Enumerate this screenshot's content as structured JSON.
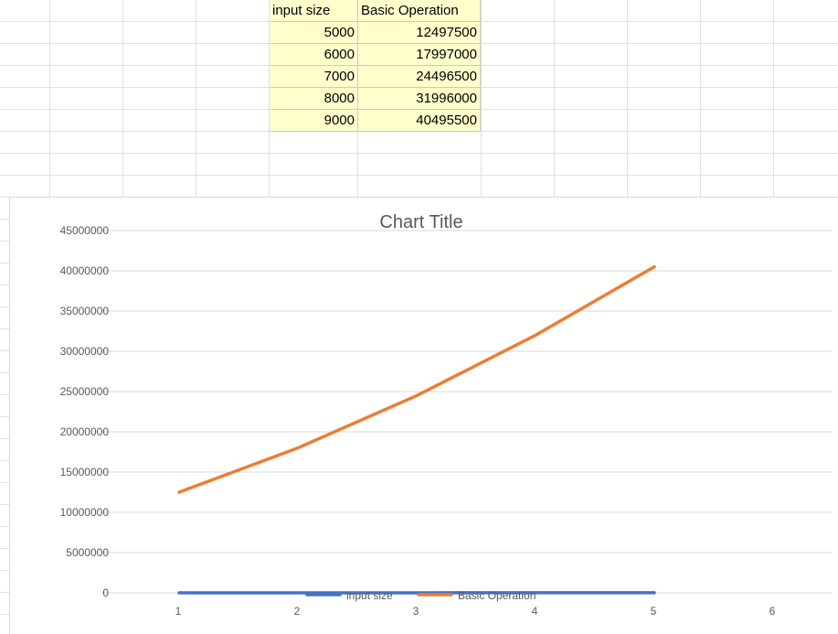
{
  "table": {
    "headers": [
      "input size",
      "Basic Operation"
    ],
    "rows": [
      [
        "5000",
        "12497500"
      ],
      [
        "6000",
        "17997000"
      ],
      [
        "7000",
        "24496500"
      ],
      [
        "8000",
        "31996000"
      ],
      [
        "9000",
        "40495500"
      ]
    ]
  },
  "chart_data": {
    "type": "line",
    "title": "Chart Title",
    "x": [
      1,
      2,
      3,
      4,
      5
    ],
    "x_ticks": [
      "1",
      "2",
      "3",
      "4",
      "5",
      "6"
    ],
    "y_ticks": [
      "0",
      "5000000",
      "10000000",
      "15000000",
      "20000000",
      "25000000",
      "30000000",
      "35000000",
      "40000000",
      "45000000"
    ],
    "ylim": [
      0,
      45000000
    ],
    "xlim": [
      0.5,
      6.5
    ],
    "grid": true,
    "legend_position": "bottom",
    "series": [
      {
        "name": "input size",
        "color": "#4472c4",
        "values": [
          5000,
          6000,
          7000,
          8000,
          9000
        ]
      },
      {
        "name": "Basic Operation",
        "color": "#ed7d31",
        "values": [
          12497500,
          17997000,
          24496500,
          31996000,
          40495500
        ]
      }
    ]
  }
}
